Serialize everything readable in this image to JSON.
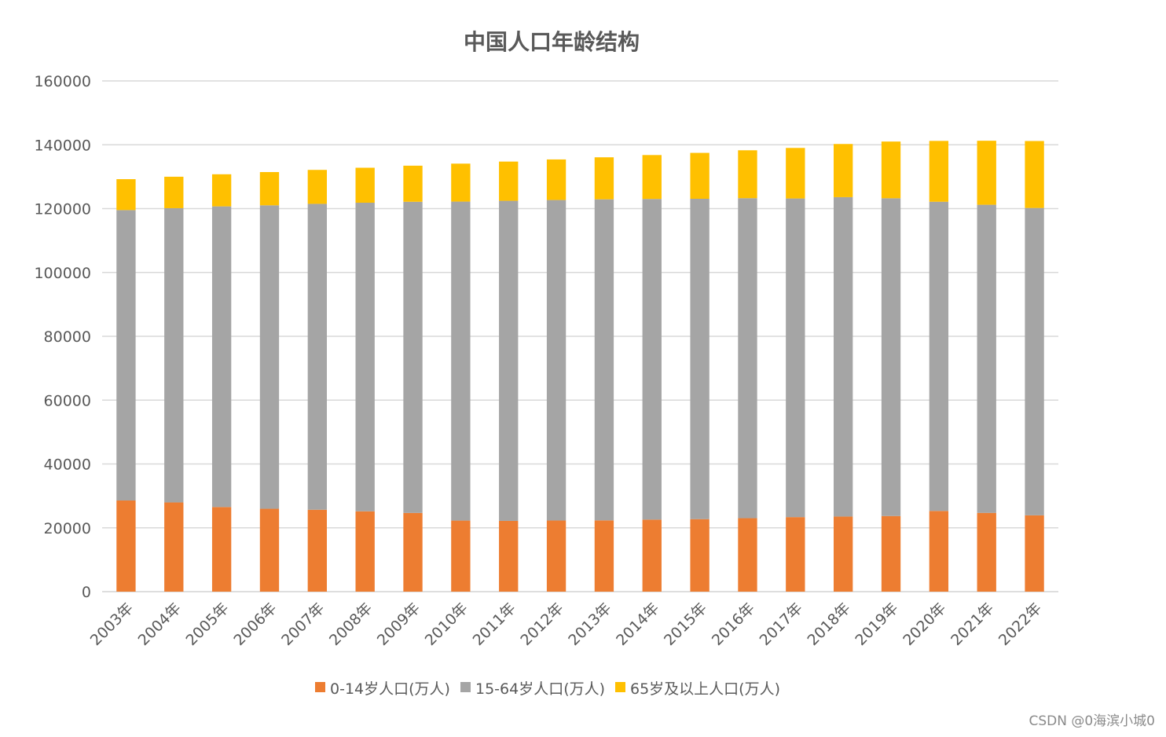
{
  "chart_data": {
    "type": "bar",
    "stacked": true,
    "title": "中国人口年龄结构",
    "categories": [
      "2003年",
      "2004年",
      "2005年",
      "2006年",
      "2007年",
      "2008年",
      "2009年",
      "2010年",
      "2011年",
      "2012年",
      "2013年",
      "2014年",
      "2015年",
      "2016年",
      "2017年",
      "2018年",
      "2019年",
      "2020年",
      "2021年",
      "2022年"
    ],
    "series": [
      {
        "name": "0-14岁人口(万人)",
        "color": "#ED7D31",
        "values": [
          28559,
          27947,
          26504,
          25961,
          25660,
          25166,
          24659,
          22259,
          22164,
          22287,
          22329,
          22558,
          22715,
          23008,
          23348,
          23523,
          23689,
          25277,
          24678,
          23908
        ]
      },
      {
        "name": "15-64岁人口(万人)",
        "color": "#A5A5A5",
        "values": [
          90976,
          92184,
          94197,
          95068,
          95833,
          96680,
          97484,
          99938,
          100283,
          100403,
          100582,
          100469,
          100361,
          100260,
          99829,
          100065,
          99552,
          96871,
          96526,
          96289
        ]
      },
      {
        "name": "65岁及以上人口(万人)",
        "color": "#FFC000",
        "values": [
          9692,
          9857,
          10055,
          10419,
          10636,
          10956,
          11307,
          11894,
          12288,
          12714,
          13161,
          13755,
          14386,
          15003,
          15831,
          16658,
          17767,
          19064,
          20056,
          20978
        ]
      }
    ],
    "yticks": [
      "0",
      "20000",
      "40000",
      "60000",
      "80000",
      "100000",
      "120000",
      "140000",
      "160000"
    ],
    "ylim": [
      0,
      160000
    ],
    "grid": true,
    "legend_position": "bottom"
  },
  "watermark": "CSDN @0海滨小城0"
}
